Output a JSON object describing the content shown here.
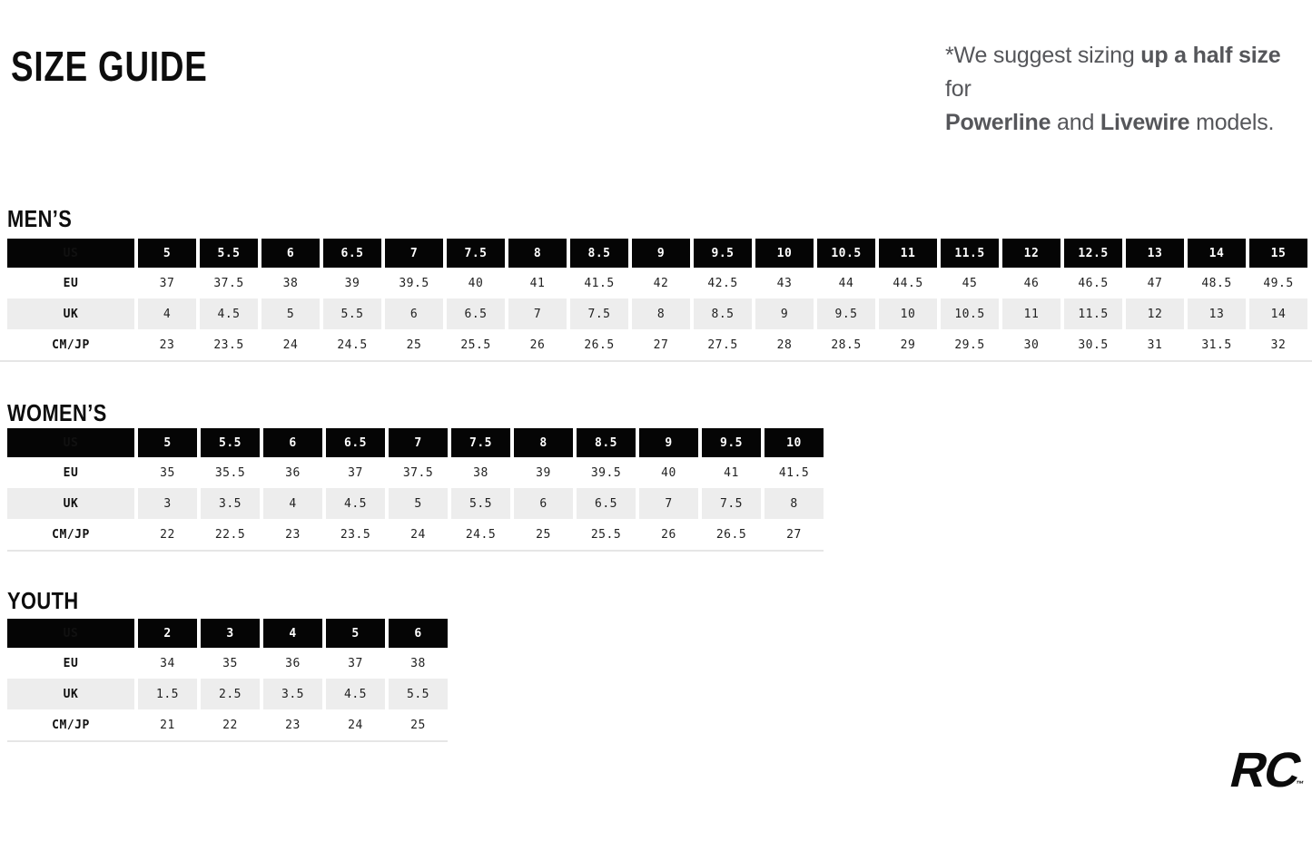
{
  "page": {
    "title": "SIZE GUIDE"
  },
  "note": {
    "part1": "*We suggest sizing ",
    "bold1": "up a half size",
    "part2": " for",
    "bold2": "Powerline",
    "part3": " and ",
    "bold3": "Livewire",
    "part4": " models."
  },
  "tables": [
    {
      "title": "MEN’S",
      "header_label": "US",
      "sizes": [
        "5",
        "5.5",
        "6",
        "6.5",
        "7",
        "7.5",
        "8",
        "8.5",
        "9",
        "9.5",
        "10",
        "10.5",
        "11",
        "11.5",
        "12",
        "12.5",
        "13",
        "14",
        "15"
      ],
      "rows": [
        {
          "label": "EU",
          "values": [
            "37",
            "37.5",
            "38",
            "39",
            "39.5",
            "40",
            "41",
            "41.5",
            "42",
            "42.5",
            "43",
            "44",
            "44.5",
            "45",
            "46",
            "46.5",
            "47",
            "48.5",
            "49.5"
          ]
        },
        {
          "label": "UK",
          "values": [
            "4",
            "4.5",
            "5",
            "5.5",
            "6",
            "6.5",
            "7",
            "7.5",
            "8",
            "8.5",
            "9",
            "9.5",
            "10",
            "10.5",
            "11",
            "11.5",
            "12",
            "13",
            "14"
          ]
        },
        {
          "label": "CM/JP",
          "values": [
            "23",
            "23.5",
            "24",
            "24.5",
            "25",
            "25.5",
            "26",
            "26.5",
            "27",
            "27.5",
            "28",
            "28.5",
            "29",
            "29.5",
            "30",
            "30.5",
            "31",
            "31.5",
            "32"
          ]
        }
      ]
    },
    {
      "title": "WOMEN’S",
      "header_label": "US",
      "sizes": [
        "5",
        "5.5",
        "6",
        "6.5",
        "7",
        "7.5",
        "8",
        "8.5",
        "9",
        "9.5",
        "10"
      ],
      "rows": [
        {
          "label": "EU",
          "values": [
            "35",
            "35.5",
            "36",
            "37",
            "37.5",
            "38",
            "39",
            "39.5",
            "40",
            "41",
            "41.5"
          ]
        },
        {
          "label": "UK",
          "values": [
            "3",
            "3.5",
            "4",
            "4.5",
            "5",
            "5.5",
            "6",
            "6.5",
            "7",
            "7.5",
            "8"
          ]
        },
        {
          "label": "CM/JP",
          "values": [
            "22",
            "22.5",
            "23",
            "23.5",
            "24",
            "24.5",
            "25",
            "25.5",
            "26",
            "26.5",
            "27"
          ]
        }
      ]
    },
    {
      "title": "YOUTH",
      "header_label": "US",
      "sizes": [
        "2",
        "3",
        "4",
        "5",
        "6"
      ],
      "rows": [
        {
          "label": "EU",
          "values": [
            "34",
            "35",
            "36",
            "37",
            "38"
          ]
        },
        {
          "label": "UK",
          "values": [
            "1.5",
            "2.5",
            "3.5",
            "4.5",
            "5.5"
          ]
        },
        {
          "label": "CM/JP",
          "values": [
            "21",
            "22",
            "23",
            "24",
            "25"
          ]
        }
      ]
    }
  ],
  "logo": {
    "text": "RC",
    "tm": "™"
  },
  "colors": {
    "header_bg": "#050505",
    "header_text": "#ffffff",
    "alt_row_bg": "#ededed",
    "rule": "#e6e6e6",
    "note_text": "#55565a",
    "heading_text": "#0d0d0d",
    "value_text": "#222222"
  }
}
